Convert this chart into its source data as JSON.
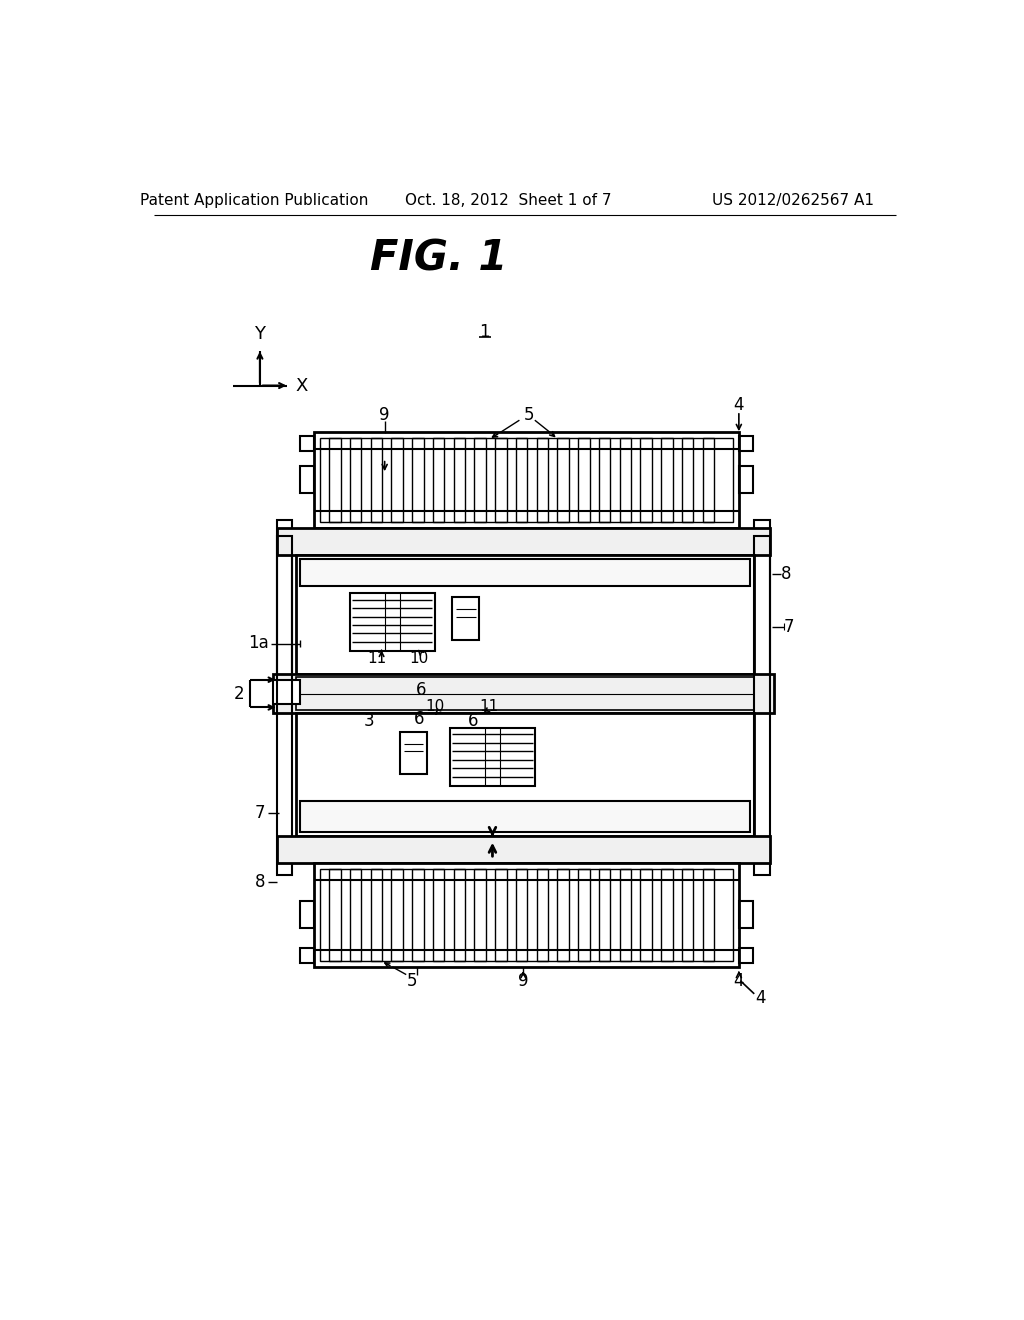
{
  "bg_color": "#ffffff",
  "lc": "#000000",
  "header_left": "Patent Application Publication",
  "header_center": "Oct. 18, 2012  Sheet 1 of 7",
  "header_right": "US 2012/0262567 A1",
  "fig_label": "FIG. 1",
  "fig_fontsize": 30,
  "header_fontsize": 11,
  "label_fontsize": 12,
  "small_label_fontsize": 11
}
